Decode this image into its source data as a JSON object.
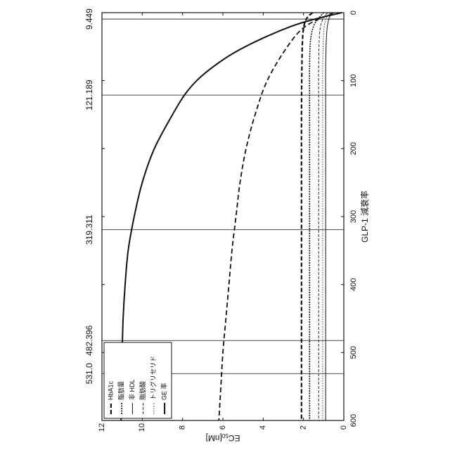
{
  "chart_data": {
    "type": "line",
    "orientation": "rotated-90-clockwise",
    "xlabel": "GLP-1 減衰率",
    "ylabel_main": "EC",
    "ylabel_sub": "50",
    "ylabel_unit": "[nM]",
    "xlim": [
      0,
      600
    ],
    "ylim": [
      0,
      12
    ],
    "x_ticks": [
      0,
      100,
      200,
      300,
      400,
      500,
      600
    ],
    "y_ticks": [
      0,
      2,
      4,
      6,
      8,
      10,
      12
    ],
    "vertical_markers": [
      9.449,
      121.189,
      319.311,
      482.396,
      531.0
    ],
    "vertical_marker_labels": [
      "9.449",
      "121.189",
      "319.311",
      "482.396",
      "531.0"
    ],
    "legend_position": "lower-left",
    "grid": false,
    "series": [
      {
        "name": "HbA1c",
        "style": "dash-bold",
        "x": [
          0,
          5,
          10,
          20,
          40,
          80,
          150,
          300,
          450,
          600
        ],
        "y": [
          1.55,
          1.75,
          1.87,
          1.98,
          2.05,
          2.08,
          2.1,
          2.1,
          2.1,
          2.1
        ]
      },
      {
        "name": "脂肪量",
        "style": "dense-dash",
        "x": [
          0,
          10,
          20,
          40,
          80,
          150,
          300,
          600
        ],
        "y": [
          1.0,
          1.3,
          1.5,
          1.65,
          1.7,
          1.7,
          1.7,
          1.7
        ]
      },
      {
        "name": "非 HDL",
        "style": "solid-thin",
        "x": [
          0,
          10,
          30,
          80,
          150,
          300,
          600
        ],
        "y": [
          0.6,
          0.75,
          0.85,
          0.9,
          0.9,
          0.9,
          0.9
        ]
      },
      {
        "name": "脂肪酸",
        "style": "dash-thin",
        "x": [
          0,
          10,
          30,
          80,
          150,
          300,
          600
        ],
        "y": [
          0.8,
          1.05,
          1.2,
          1.25,
          1.25,
          1.25,
          1.25
        ]
      },
      {
        "name": "トリグリセリド",
        "style": "dot",
        "x": [
          0,
          10,
          30,
          80,
          150,
          300,
          600
        ],
        "y": [
          0.7,
          0.9,
          1.0,
          1.05,
          1.05,
          1.05,
          1.05
        ]
      },
      {
        "name": "GE 率",
        "style": "solid-bold",
        "x": [
          0,
          10,
          20,
          40,
          60,
          80,
          100,
          121,
          150,
          200,
          250,
          300,
          350,
          400,
          450,
          500,
          550,
          600
        ],
        "y": [
          0.1,
          1.5,
          2.6,
          4.2,
          5.5,
          6.5,
          7.3,
          7.9,
          8.5,
          9.4,
          10.0,
          10.4,
          10.7,
          10.85,
          10.95,
          11.0,
          11.05,
          11.05
        ]
      },
      {
        "name": "",
        "style": "dash-medium",
        "x": [
          0,
          20,
          50,
          100,
          150,
          200,
          250,
          300,
          350,
          400,
          450,
          500,
          550,
          600
        ],
        "y": [
          0.5,
          1.9,
          2.8,
          3.8,
          4.4,
          4.85,
          5.15,
          5.35,
          5.55,
          5.7,
          5.85,
          6.0,
          6.1,
          6.2
        ]
      }
    ]
  }
}
